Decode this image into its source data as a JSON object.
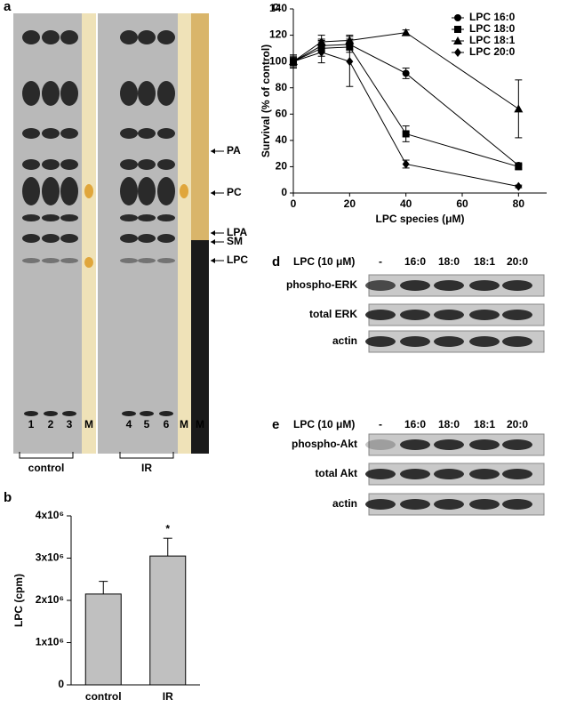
{
  "chart_data": [
    {
      "type": "bar",
      "label": "b",
      "categories": [
        "control",
        "IR"
      ],
      "values": [
        2150000,
        3050000
      ],
      "errors": [
        300000,
        420000
      ],
      "color": "#c0c0c0",
      "ylabel": "LPC (cpm)",
      "annotation": "*",
      "ylim": [
        0,
        4000000
      ],
      "yticks": [
        0,
        {
          "value": 1000000,
          "label": "1x10⁶"
        },
        {
          "value": 2000000,
          "label": "2x10⁶"
        },
        {
          "value": 3000000,
          "label": "3x10⁶"
        },
        {
          "value": 4000000,
          "label": "4x10⁶"
        }
      ]
    },
    {
      "type": "line",
      "label": "c",
      "xlabel": "LPC species (μM)",
      "ylabel": "Survival (% of control)",
      "x": [
        0,
        10,
        20,
        40,
        80
      ],
      "xlim": [
        0,
        90
      ],
      "xticks": [
        0,
        20,
        40,
        60,
        80
      ],
      "ylim": [
        0,
        140
      ],
      "yticks": [
        0,
        20,
        40,
        60,
        80,
        100,
        120,
        140
      ],
      "legend": "upper right",
      "series": [
        {
          "name": "LPC 16:0",
          "marker": "circle",
          "color": "#000000",
          "values": [
            100,
            112,
            113,
            91,
            21
          ],
          "errors": [
            3,
            5,
            4,
            4,
            2
          ]
        },
        {
          "name": "LPC 18:0",
          "marker": "square",
          "color": "#000000",
          "values": [
            100,
            110,
            111,
            45,
            20
          ],
          "errors": [
            3,
            6,
            4,
            6,
            2
          ]
        },
        {
          "name": "LPC 18:1",
          "marker": "triangle",
          "color": "#000000",
          "values": [
            100,
            115,
            116,
            122,
            64
          ],
          "errors": [
            4,
            5,
            4,
            2,
            22
          ]
        },
        {
          "name": "LPC 20:0",
          "marker": "diamond",
          "color": "#000000",
          "values": [
            100,
            107,
            100,
            22,
            5
          ],
          "errors": [
            5,
            8,
            19,
            3,
            1
          ]
        }
      ]
    }
  ],
  "gel": {
    "label": "a",
    "lanes": [
      "1",
      "2",
      "3",
      "M",
      "4",
      "5",
      "6",
      "M",
      "M"
    ],
    "bands": [
      "PA",
      "PC",
      "LPA",
      "SM",
      "LPC"
    ],
    "groups": [
      "control",
      "IR"
    ]
  },
  "blots": [
    {
      "label": "d",
      "header": "LPC (10 μM)",
      "lanes": [
        "-",
        "16:0",
        "18:0",
        "18:1",
        "20:0"
      ],
      "rows": [
        "phospho-ERK",
        "total ERK",
        "actin"
      ]
    },
    {
      "label": "e",
      "header": "LPC (10 μM)",
      "lanes": [
        "-",
        "16:0",
        "18:0",
        "18:1",
        "20:0"
      ],
      "rows": [
        "phospho-Akt",
        "total Akt",
        "actin"
      ]
    }
  ]
}
